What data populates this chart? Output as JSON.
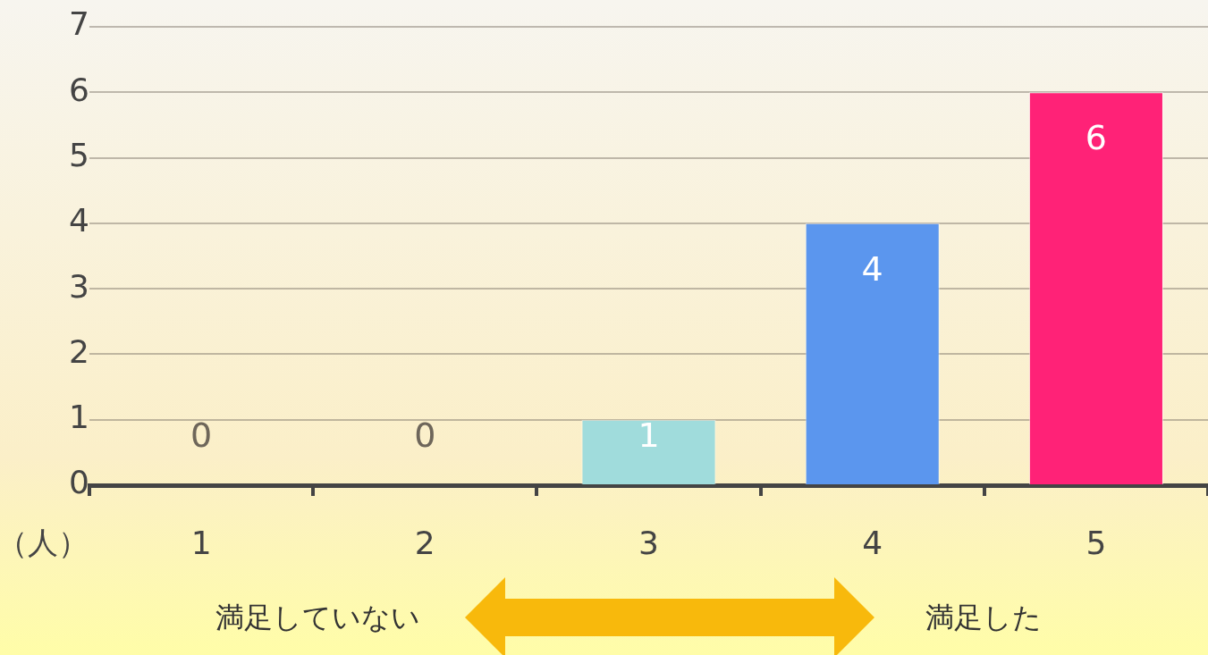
{
  "chart_data": {
    "type": "bar",
    "ylabel": "（人）",
    "categories": [
      "1",
      "2",
      "3",
      "4",
      "5"
    ],
    "values": [
      0,
      0,
      1,
      4,
      6
    ],
    "colors": [
      "#a0dcdc",
      "#a0dcdc",
      "#a0dcdc",
      "#5b96ee",
      "#ff2277"
    ],
    "ylim": [
      0,
      7
    ],
    "yticks": [
      0,
      1,
      2,
      3,
      4,
      5,
      6,
      7
    ],
    "grid": "y",
    "legend": false,
    "data_labels": true,
    "annotations": [
      "満足していない",
      "満足した"
    ]
  }
}
